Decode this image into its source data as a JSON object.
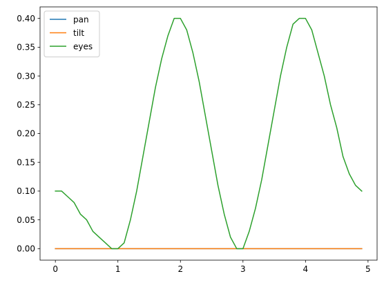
{
  "chart_data": {
    "type": "line",
    "title": "",
    "xlabel": "",
    "ylabel": "",
    "xlim": [
      -0.245,
      5.145
    ],
    "ylim": [
      -0.02,
      0.42
    ],
    "xticks": [
      0,
      1,
      2,
      3,
      4,
      5
    ],
    "yticks": [
      0.0,
      0.05,
      0.1,
      0.15,
      0.2,
      0.25,
      0.3,
      0.35,
      0.4
    ],
    "xtick_labels": [
      "0",
      "1",
      "2",
      "3",
      "4",
      "5"
    ],
    "ytick_labels": [
      "0.00",
      "0.05",
      "0.10",
      "0.15",
      "0.20",
      "0.25",
      "0.30",
      "0.35",
      "0.40"
    ],
    "grid": false,
    "legend_position": "top-left",
    "x": [
      0.0,
      0.1,
      0.2,
      0.3,
      0.4,
      0.5,
      0.6,
      0.7,
      0.8,
      0.9,
      1.0,
      1.1,
      1.2,
      1.3,
      1.4,
      1.5,
      1.6,
      1.7,
      1.8,
      1.9,
      2.0,
      2.1,
      2.2,
      2.3,
      2.4,
      2.5,
      2.6,
      2.7,
      2.8,
      2.9,
      3.0,
      3.1,
      3.2,
      3.3,
      3.4,
      3.5,
      3.6,
      3.7,
      3.8,
      3.9,
      4.0,
      4.1,
      4.2,
      4.3,
      4.4,
      4.5,
      4.6,
      4.7,
      4.8,
      4.9
    ],
    "series": [
      {
        "name": "pan",
        "color": "#1f77b4",
        "values": [
          0,
          0,
          0,
          0,
          0,
          0,
          0,
          0,
          0,
          0,
          0,
          0,
          0,
          0,
          0,
          0,
          0,
          0,
          0,
          0,
          0,
          0,
          0,
          0,
          0,
          0,
          0,
          0,
          0,
          0,
          0,
          0,
          0,
          0,
          0,
          0,
          0,
          0,
          0,
          0,
          0,
          0,
          0,
          0,
          0,
          0,
          0,
          0,
          0,
          0
        ]
      },
      {
        "name": "tilt",
        "color": "#ff7f0e",
        "values": [
          0,
          0,
          0,
          0,
          0,
          0,
          0,
          0,
          0,
          0,
          0,
          0,
          0,
          0,
          0,
          0,
          0,
          0,
          0,
          0,
          0,
          0,
          0,
          0,
          0,
          0,
          0,
          0,
          0,
          0,
          0,
          0,
          0,
          0,
          0,
          0,
          0,
          0,
          0,
          0,
          0,
          0,
          0,
          0,
          0,
          0,
          0,
          0,
          0,
          0
        ]
      },
      {
        "name": "eyes",
        "color": "#2ca02c",
        "values": [
          0.1,
          0.1,
          0.09,
          0.08,
          0.06,
          0.05,
          0.03,
          0.02,
          0.01,
          0.0,
          0.0,
          0.01,
          0.05,
          0.1,
          0.16,
          0.22,
          0.28,
          0.33,
          0.37,
          0.4,
          0.4,
          0.38,
          0.34,
          0.29,
          0.23,
          0.17,
          0.11,
          0.06,
          0.02,
          0.0,
          0.0,
          0.03,
          0.07,
          0.12,
          0.18,
          0.24,
          0.3,
          0.35,
          0.39,
          0.4,
          0.4,
          0.38,
          0.34,
          0.3,
          0.25,
          0.21,
          0.16,
          0.13,
          0.11,
          0.1
        ]
      }
    ]
  }
}
